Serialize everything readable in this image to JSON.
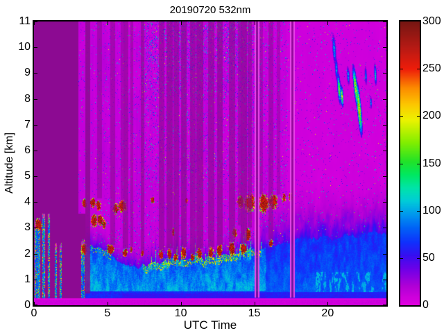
{
  "figure": {
    "background": "#ffffff"
  },
  "chart_data": {
    "type": "heatmap",
    "title": "20190720 532nm",
    "xlabel": "UTC Time",
    "ylabel": "Altitude [km]",
    "xlim": [
      0,
      24
    ],
    "ylim": [
      0,
      11
    ],
    "xticks": [
      0,
      5,
      10,
      15,
      20
    ],
    "yticks": [
      0,
      1,
      2,
      3,
      4,
      5,
      6,
      7,
      8,
      9,
      10,
      11
    ],
    "grid": false,
    "legend": "none",
    "colorbar": {
      "min": 0,
      "max": 300,
      "ticks": [
        0,
        50,
        100,
        150,
        200,
        250,
        300
      ],
      "position": "right"
    },
    "colormap_stops": [
      [
        0,
        [
          226,
          0,
          224
        ]
      ],
      [
        20,
        [
          176,
          0,
          214
        ]
      ],
      [
        38,
        [
          110,
          0,
          232
        ]
      ],
      [
        52,
        [
          56,
          14,
          240
        ]
      ],
      [
        66,
        [
          16,
          48,
          252
        ]
      ],
      [
        82,
        [
          0,
          100,
          246
        ]
      ],
      [
        96,
        [
          0,
          152,
          238
        ]
      ],
      [
        110,
        [
          0,
          204,
          216
        ]
      ],
      [
        124,
        [
          0,
          228,
          168
        ]
      ],
      [
        138,
        [
          0,
          232,
          96
        ]
      ],
      [
        152,
        [
          34,
          226,
          40
        ]
      ],
      [
        172,
        [
          130,
          238,
          0
        ]
      ],
      [
        196,
        [
          236,
          242,
          0
        ]
      ],
      [
        212,
        [
          252,
          200,
          0
        ]
      ],
      [
        230,
        [
          252,
          138,
          0
        ]
      ],
      [
        250,
        [
          238,
          28,
          10
        ]
      ],
      [
        272,
        [
          184,
          26,
          20
        ]
      ],
      [
        300,
        [
          118,
          22,
          18
        ]
      ]
    ],
    "no_data_color": [
      140,
      10,
      146
    ],
    "features": {
      "lidar_on_time": 3.02,
      "early_region_end": 3.48,
      "surface_band_top_km": 0.28,
      "early_strips": [
        [
          0.07,
          0.43,
          3.0
        ],
        [
          0.55,
          0.76,
          3.3
        ],
        [
          0.93,
          1.1,
          3.3
        ],
        [
          1.4,
          1.56,
          2.1
        ],
        [
          1.74,
          1.9,
          2.1
        ],
        [
          3.21,
          3.46,
          2.2
        ]
      ],
      "bl_top_profile": [
        [
          3.45,
          2.3
        ],
        [
          4.0,
          2.25
        ],
        [
          4.6,
          2.15
        ],
        [
          5.0,
          2.05
        ],
        [
          5.5,
          1.85
        ],
        [
          6.0,
          1.65
        ],
        [
          6.6,
          1.45
        ],
        [
          7.2,
          1.5
        ],
        [
          8.0,
          1.65
        ],
        [
          9.0,
          1.75
        ],
        [
          10.0,
          1.8
        ],
        [
          11.0,
          1.85
        ],
        [
          12.0,
          1.85
        ],
        [
          13.0,
          1.95
        ],
        [
          14.0,
          2.05
        ],
        [
          15.0,
          2.1
        ],
        [
          15.8,
          2.25
        ],
        [
          16.5,
          2.4
        ],
        [
          17.5,
          2.5
        ],
        [
          18.5,
          2.55
        ],
        [
          19.5,
          2.6
        ],
        [
          20.5,
          2.65
        ],
        [
          21.5,
          2.7
        ],
        [
          22.5,
          2.75
        ],
        [
          23.5,
          2.8
        ],
        [
          24.0,
          2.8
        ]
      ],
      "clouds": [
        [
          0.08,
          0.5,
          2.9,
          3.35
        ],
        [
          3.21,
          3.6,
          1.95,
          2.35
        ],
        [
          3.3,
          3.62,
          3.75,
          4.1
        ],
        [
          3.82,
          4.18,
          3.8,
          4.15
        ],
        [
          4.25,
          4.58,
          3.68,
          4.05
        ],
        [
          3.9,
          4.3,
          3.05,
          3.5
        ],
        [
          4.32,
          4.7,
          3.1,
          3.5
        ],
        [
          4.62,
          4.9,
          3.0,
          3.3
        ],
        [
          5.38,
          5.76,
          3.55,
          3.95
        ],
        [
          5.8,
          6.28,
          3.6,
          4.05
        ],
        [
          4.95,
          5.45,
          2.0,
          2.35
        ],
        [
          6.05,
          6.35,
          1.9,
          2.2
        ],
        [
          6.55,
          6.72,
          2.05,
          2.28
        ],
        [
          7.28,
          7.46,
          1.9,
          2.12
        ],
        [
          7.95,
          8.2,
          3.95,
          4.2
        ],
        [
          8.52,
          8.8,
          1.78,
          2.12
        ],
        [
          9.07,
          9.36,
          1.8,
          2.2
        ],
        [
          9.4,
          9.56,
          2.7,
          3.0
        ],
        [
          9.52,
          9.8,
          1.7,
          2.0
        ],
        [
          10.0,
          10.36,
          1.8,
          2.25
        ],
        [
          10.3,
          10.46,
          3.95,
          4.15
        ],
        [
          10.65,
          10.95,
          1.7,
          2.0
        ],
        [
          11.08,
          11.46,
          1.8,
          2.2
        ],
        [
          11.88,
          12.2,
          1.85,
          2.25
        ],
        [
          12.48,
          12.82,
          1.9,
          2.35
        ],
        [
          13.28,
          13.66,
          1.95,
          2.45
        ],
        [
          13.5,
          13.82,
          2.6,
          3.0
        ],
        [
          14.08,
          14.46,
          2.0,
          2.4
        ],
        [
          14.4,
          14.74,
          2.5,
          3.0
        ],
        [
          13.85,
          14.32,
          3.8,
          4.25
        ],
        [
          14.36,
          15.06,
          3.65,
          4.3
        ],
        [
          15.3,
          15.96,
          3.6,
          4.3
        ],
        [
          16.0,
          16.56,
          3.75,
          4.3
        ],
        [
          16.9,
          17.16,
          4.0,
          4.3
        ],
        [
          17.35,
          17.6,
          4.05,
          4.35
        ],
        [
          16.0,
          16.26,
          2.25,
          2.55
        ]
      ],
      "attenuation_stripes": [
        [
          3.48,
          3.84,
          0.45,
          0.8
        ],
        [
          4.3,
          4.62,
          4.15,
          0.5
        ],
        [
          5.2,
          5.54,
          2.35,
          0.55
        ],
        [
          5.9,
          6.1,
          4.05,
          0.45
        ],
        [
          6.06,
          6.44,
          2.2,
          0.6
        ],
        [
          6.55,
          6.76,
          2.25,
          0.5
        ],
        [
          7.26,
          7.52,
          2.1,
          0.6
        ],
        [
          8.5,
          8.86,
          2.1,
          0.6
        ],
        [
          9.04,
          9.44,
          2.2,
          0.65
        ],
        [
          9.5,
          9.86,
          2.0,
          0.6
        ],
        [
          10.0,
          10.4,
          2.25,
          0.65
        ],
        [
          10.63,
          11.0,
          2.0,
          0.6
        ],
        [
          11.06,
          11.52,
          2.2,
          0.65
        ],
        [
          11.86,
          12.26,
          2.25,
          0.6
        ],
        [
          12.46,
          12.86,
          2.35,
          0.65
        ],
        [
          13.26,
          13.7,
          2.45,
          0.6
        ],
        [
          13.88,
          14.06,
          3.1,
          0.5
        ],
        [
          14.06,
          14.52,
          2.4,
          0.65
        ],
        [
          14.56,
          14.82,
          3.0,
          0.55
        ],
        [
          15.32,
          15.6,
          4.3,
          0.45
        ],
        [
          15.98,
          16.3,
          2.55,
          0.5
        ],
        [
          16.55,
          16.75,
          4.3,
          0.4
        ]
      ],
      "gap_stripes": [
        [
          15.08,
          15.3
        ],
        [
          17.5,
          17.7
        ]
      ],
      "cirrus": [
        [
          20.45,
          9.9,
          0.1,
          0.5,
          0.12,
          105
        ],
        [
          20.6,
          9.15,
          0.09,
          0.4,
          0.1,
          95
        ],
        [
          20.78,
          8.4,
          0.1,
          0.5,
          0.12,
          165
        ],
        [
          20.98,
          8.1,
          0.08,
          0.35,
          0.1,
          185
        ],
        [
          21.4,
          8.9,
          0.08,
          0.3,
          0.1,
          95
        ],
        [
          21.9,
          8.45,
          0.11,
          0.7,
          0.18,
          190
        ],
        [
          22.15,
          7.6,
          0.12,
          0.85,
          0.15,
          215
        ],
        [
          22.6,
          8.9,
          0.07,
          0.3,
          0.08,
          90
        ],
        [
          23.25,
          8.95,
          0.07,
          0.35,
          0.08,
          125
        ],
        [
          22.95,
          7.85,
          0.06,
          0.2,
          0.05,
          95
        ]
      ]
    }
  }
}
